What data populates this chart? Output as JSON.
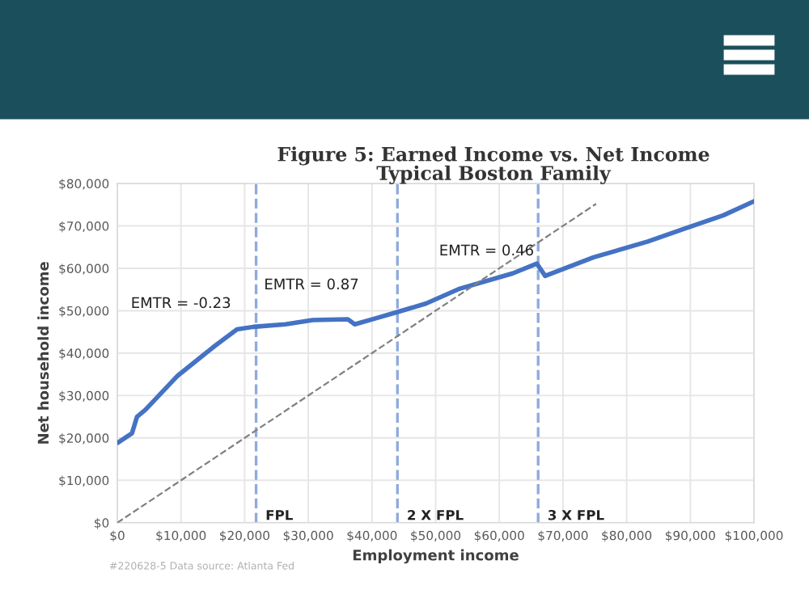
{
  "chart_data": {
    "type": "line",
    "title": "Figure 5: Earned Income vs. Net Income",
    "subtitle": "Typical Boston Family",
    "xlabel": "Employment income",
    "ylabel": "Net household income",
    "series": [
      {
        "color": "#4472c4",
        "line_style": "solid",
        "x": [
          200,
          2300,
          3100,
          4400,
          9500,
          15400,
          18800,
          21400,
          26400,
          30700,
          36200,
          37300,
          40800,
          43800,
          48500,
          53600,
          62100,
          65900,
          67200,
          74800,
          83300,
          89200,
          95200,
          100000
        ],
        "values": [
          19000,
          21100,
          25000,
          26600,
          34700,
          41800,
          45600,
          46200,
          46800,
          47800,
          48000,
          46800,
          48300,
          49600,
          51700,
          55100,
          58800,
          61100,
          58200,
          62600,
          66300,
          69400,
          72500,
          75800
        ]
      },
      {
        "color": "#808080",
        "line_style": "dashed",
        "x": [
          0,
          75200
        ],
        "values": [
          0,
          75200
        ]
      }
    ],
    "xlim": [
      0,
      100000
    ],
    "xticks": [
      {
        "value": 0,
        "label": "$0"
      },
      {
        "value": 10000,
        "label": "$10,000"
      },
      {
        "value": 20000,
        "label": "$20,000"
      },
      {
        "value": 30000,
        "label": "$30,000"
      },
      {
        "value": 40000,
        "label": "$40,000"
      },
      {
        "value": 50000,
        "label": "$50,000"
      },
      {
        "value": 60000,
        "label": "$60,000"
      },
      {
        "value": 70000,
        "label": "$70,000"
      },
      {
        "value": 80000,
        "label": "$80,000"
      },
      {
        "value": 90000,
        "label": "$90,000"
      },
      {
        "value": 100000,
        "label": "$100,000"
      }
    ],
    "ylim": [
      0,
      80000
    ],
    "yticks": [
      {
        "value": 0,
        "label": "$0"
      },
      {
        "value": 10000,
        "label": "$10,000"
      },
      {
        "value": 20000,
        "label": "$20,000"
      },
      {
        "value": 30000,
        "label": "$30,000"
      },
      {
        "value": 40000,
        "label": "$40,000"
      },
      {
        "value": 50000,
        "label": "$50,000"
      },
      {
        "value": 60000,
        "label": "$60,000"
      },
      {
        "value": 70000,
        "label": "$70,000"
      },
      {
        "value": 80000,
        "label": "$80,000"
      }
    ],
    "ref_lines": [
      {
        "axis": "x",
        "value": 21800,
        "label": "FPL",
        "color": "#8faadc",
        "line_style": "dashed"
      },
      {
        "axis": "x",
        "value": 44000,
        "label": "2 X FPL",
        "color": "#8faadc",
        "line_style": "dashed"
      },
      {
        "axis": "x",
        "value": 66100,
        "label": "3 X FPL",
        "color": "#8faadc",
        "line_style": "dashed"
      }
    ],
    "annotations": [
      "EMTR = -0.23",
      "EMTR = 0.87",
      "EMTR = 0.46",
      "#220628-5 Data source: Atlanta Fed"
    ],
    "grid": true,
    "legend": false,
    "marker": "none"
  }
}
